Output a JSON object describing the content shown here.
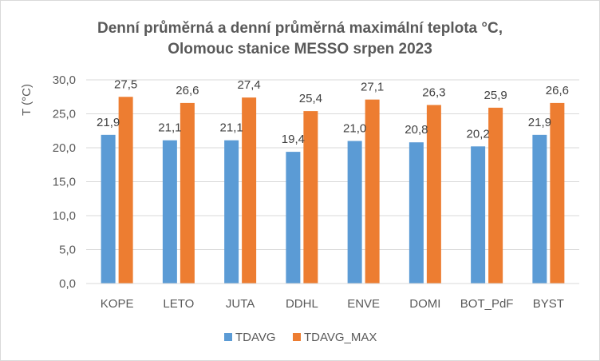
{
  "chart_data": {
    "type": "bar",
    "title": [
      "Denní průměrná a denní průměrná maximální teplota °C,",
      "Olomouc stanice MESSO srpen 2023"
    ],
    "ylabel": "T (°C)",
    "xlabel": "",
    "categories": [
      "KOPE",
      "LETO",
      "JUTA",
      "DDHL",
      "ENVE",
      "DOMI",
      "BOT_PdF",
      "BYST"
    ],
    "series": [
      {
        "name": "TDAVG",
        "color": "#5b9bd5",
        "values": [
          21.9,
          21.1,
          21.1,
          19.4,
          21.0,
          20.8,
          20.2,
          21.9
        ],
        "labels": [
          "21,9",
          "21,1",
          "21,1",
          "19,4",
          "21,0",
          "20,8",
          "20,2",
          "21,9"
        ]
      },
      {
        "name": "TDAVG_MAX",
        "color": "#ed7d31",
        "values": [
          27.5,
          26.6,
          27.4,
          25.4,
          27.1,
          26.3,
          25.9,
          26.6
        ],
        "labels": [
          "27,5",
          "26,6",
          "27,4",
          "25,4",
          "27,1",
          "26,3",
          "25,9",
          "26,6"
        ]
      }
    ],
    "ylim": [
      0,
      30
    ],
    "yticks": [
      0,
      5,
      10,
      15,
      20,
      25,
      30
    ],
    "ytick_labels": [
      "0,0",
      "5,0",
      "10,0",
      "15,0",
      "20,0",
      "25,0",
      "30,0"
    ],
    "grid": true,
    "legend": "bottom"
  }
}
